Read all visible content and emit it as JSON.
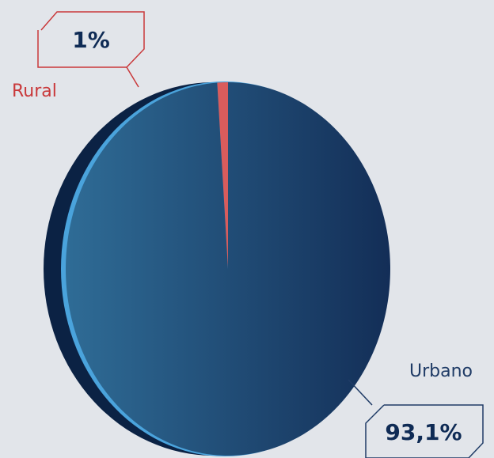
{
  "chart_data": {
    "type": "pie",
    "categories": [
      "Rural",
      "Urbano"
    ],
    "values": [
      1,
      93.1
    ],
    "value_labels": [
      "1%",
      "93,1%"
    ],
    "colors": [
      "#d95c5c",
      "#1f4a78"
    ]
  }
}
